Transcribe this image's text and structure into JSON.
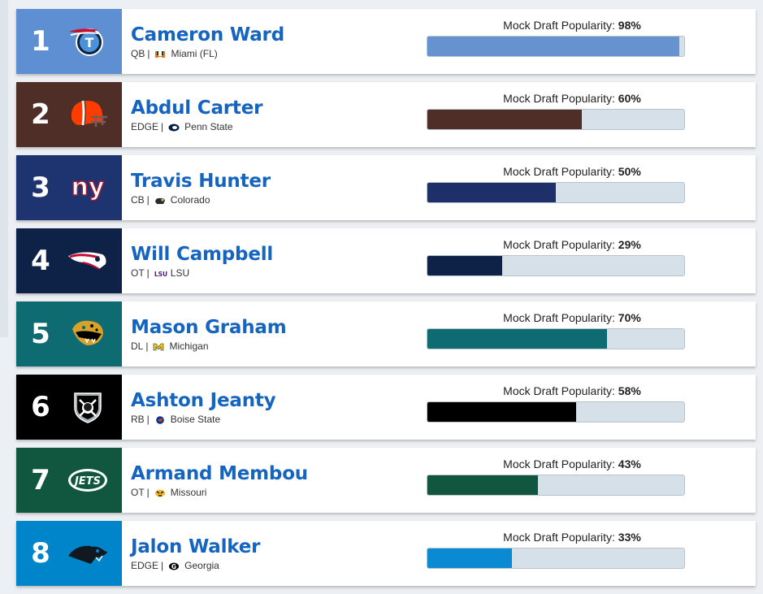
{
  "popularity_label": "Mock Draft Popularity:",
  "picks": [
    {
      "pick": "1",
      "name": "Cameron Ward",
      "position": "QB",
      "school": "Miami (FL)",
      "popularity": "98%",
      "popularity_value": 98,
      "team_logo": "titans-logo",
      "school_icon": "miami-u-icon",
      "team_color": "#5f8fd3",
      "bar_color": "#6792d0"
    },
    {
      "pick": "2",
      "name": "Abdul Carter",
      "position": "EDGE",
      "school": "Penn State",
      "popularity": "60%",
      "popularity_value": 60,
      "team_logo": "browns-helmet-logo",
      "school_icon": "penn-state-lion-icon",
      "team_color": "#4f2e28",
      "bar_color": "#4f2e28"
    },
    {
      "pick": "3",
      "name": "Travis Hunter",
      "position": "CB",
      "school": "Colorado",
      "popularity": "50%",
      "popularity_value": 50,
      "team_logo": "giants-ny-logo",
      "school_icon": "colorado-buffalo-icon",
      "team_color": "#1e3470",
      "bar_color": "#1e2f6a"
    },
    {
      "pick": "4",
      "name": "Will Campbell",
      "position": "OT",
      "school": "LSU",
      "popularity": "29%",
      "popularity_value": 29,
      "team_logo": "patriots-logo",
      "school_icon": "lsu-icon",
      "team_color": "#0e2147",
      "bar_color": "#0e2147"
    },
    {
      "pick": "5",
      "name": "Mason Graham",
      "position": "DL",
      "school": "Michigan",
      "popularity": "70%",
      "popularity_value": 70,
      "team_logo": "jaguars-logo",
      "school_icon": "michigan-m-icon",
      "team_color": "#0e6b72",
      "bar_color": "#0e6b72"
    },
    {
      "pick": "6",
      "name": "Ashton Jeanty",
      "position": "RB",
      "school": "Boise State",
      "popularity": "58%",
      "popularity_value": 58,
      "team_logo": "raiders-shield-logo",
      "school_icon": "boise-state-bronco-icon",
      "team_color": "#000000",
      "bar_color": "#000000"
    },
    {
      "pick": "7",
      "name": "Armand Membou",
      "position": "OT",
      "school": "Missouri",
      "popularity": "43%",
      "popularity_value": 43,
      "team_logo": "jets-logo",
      "school_icon": "missouri-tiger-icon",
      "team_color": "#115740",
      "bar_color": "#115740"
    },
    {
      "pick": "8",
      "name": "Jalon Walker",
      "position": "EDGE",
      "school": "Georgia",
      "popularity": "33%",
      "popularity_value": 33,
      "team_logo": "panthers-logo",
      "school_icon": "georgia-g-icon",
      "team_color": "#0085ca",
      "bar_color": "#0a8ad2"
    }
  ]
}
